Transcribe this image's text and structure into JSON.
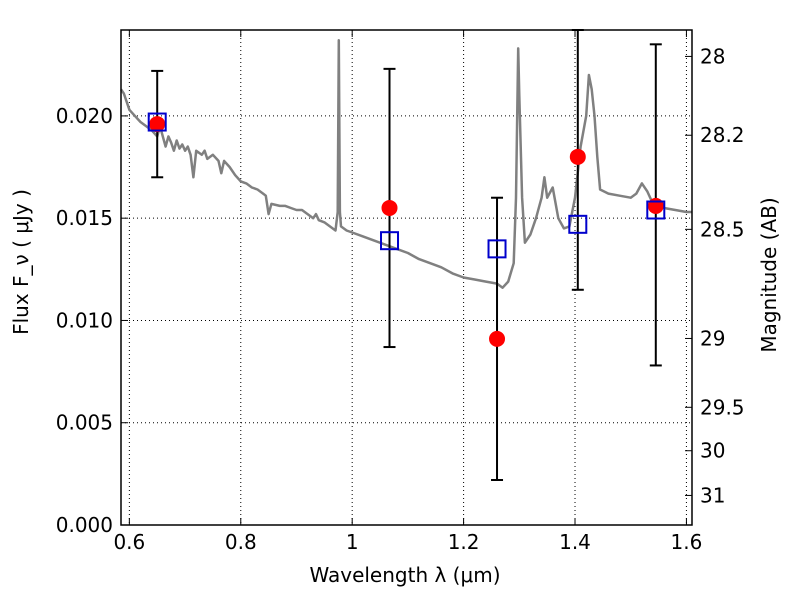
{
  "chart_data": {
    "type": "scatter",
    "xlabel": "Wavelength  λ (μm)",
    "ylabel": "Flux  F_ν  ( μJy )",
    "ylabel_right": "Magnitude (AB)",
    "xlim": [
      0.585,
      1.61
    ],
    "ylim": [
      0.0,
      0.0242
    ],
    "x_ticks": [
      0.6,
      0.8,
      1.0,
      1.2,
      1.4,
      1.6
    ],
    "x_tick_labels": [
      "0.6",
      "0.8",
      "1",
      "1.2",
      "1.4",
      "1.6"
    ],
    "y_ticks": [
      0.0,
      0.005,
      0.01,
      0.015,
      0.02
    ],
    "y_tick_labels": [
      "0.000",
      "0.005",
      "0.010",
      "0.015",
      "0.020"
    ],
    "right_ticks": [
      {
        "mag": 28.0,
        "label": "28"
      },
      {
        "mag": 28.2,
        "label": "28.2"
      },
      {
        "mag": 28.5,
        "label": "28.5"
      },
      {
        "mag": 29.0,
        "label": "29"
      },
      {
        "mag": 29.5,
        "label": "29.5"
      },
      {
        "mag": 30.0,
        "label": "30"
      },
      {
        "mag": 31.0,
        "label": "31"
      }
    ],
    "grid": true,
    "colors": {
      "spectrum": "#808080",
      "observed": "#ff0000",
      "model": "#0000cc",
      "errorbar": "#000000"
    },
    "series": [
      {
        "type": "line",
        "points": [
          [
            0.585,
            0.0213
          ],
          [
            0.59,
            0.0211
          ],
          [
            0.6,
            0.0203
          ],
          [
            0.61,
            0.02
          ],
          [
            0.62,
            0.0197
          ],
          [
            0.63,
            0.0195
          ],
          [
            0.64,
            0.0193
          ],
          [
            0.65,
            0.019
          ],
          [
            0.655,
            0.0195
          ],
          [
            0.66,
            0.019
          ],
          [
            0.665,
            0.0185
          ],
          [
            0.67,
            0.019
          ],
          [
            0.675,
            0.0187
          ],
          [
            0.68,
            0.0183
          ],
          [
            0.685,
            0.0188
          ],
          [
            0.69,
            0.0184
          ],
          [
            0.695,
            0.0186
          ],
          [
            0.7,
            0.0183
          ],
          [
            0.705,
            0.0185
          ],
          [
            0.71,
            0.0181
          ],
          [
            0.715,
            0.017
          ],
          [
            0.72,
            0.0183
          ],
          [
            0.73,
            0.0181
          ],
          [
            0.735,
            0.0183
          ],
          [
            0.74,
            0.0179
          ],
          [
            0.75,
            0.0181
          ],
          [
            0.76,
            0.0178
          ],
          [
            0.765,
            0.0172
          ],
          [
            0.77,
            0.0178
          ],
          [
            0.78,
            0.0175
          ],
          [
            0.79,
            0.0171
          ],
          [
            0.8,
            0.0168
          ],
          [
            0.81,
            0.0167
          ],
          [
            0.82,
            0.0165
          ],
          [
            0.83,
            0.0164
          ],
          [
            0.84,
            0.0162
          ],
          [
            0.845,
            0.0161
          ],
          [
            0.85,
            0.0152
          ],
          [
            0.855,
            0.0157
          ],
          [
            0.87,
            0.0156
          ],
          [
            0.88,
            0.0156
          ],
          [
            0.89,
            0.0155
          ],
          [
            0.9,
            0.0154
          ],
          [
            0.91,
            0.0154
          ],
          [
            0.92,
            0.0152
          ],
          [
            0.93,
            0.015
          ],
          [
            0.935,
            0.0152
          ],
          [
            0.94,
            0.0149
          ],
          [
            0.95,
            0.0148
          ],
          [
            0.96,
            0.0146
          ],
          [
            0.97,
            0.0144
          ],
          [
            0.974,
            0.0153
          ],
          [
            0.976,
            0.0237
          ],
          [
            0.978,
            0.0153
          ],
          [
            0.98,
            0.0146
          ],
          [
            0.99,
            0.0144
          ],
          [
            1.0,
            0.0143
          ],
          [
            1.02,
            0.0141
          ],
          [
            1.04,
            0.0139
          ],
          [
            1.06,
            0.0137
          ],
          [
            1.08,
            0.0135
          ],
          [
            1.1,
            0.0133
          ],
          [
            1.12,
            0.013
          ],
          [
            1.14,
            0.0128
          ],
          [
            1.16,
            0.0126
          ],
          [
            1.18,
            0.0123
          ],
          [
            1.2,
            0.0121
          ],
          [
            1.22,
            0.012
          ],
          [
            1.24,
            0.0119
          ],
          [
            1.26,
            0.0118
          ],
          [
            1.27,
            0.0116
          ],
          [
            1.28,
            0.0119
          ],
          [
            1.29,
            0.0128
          ],
          [
            1.294,
            0.016
          ],
          [
            1.298,
            0.0233
          ],
          [
            1.3,
            0.021
          ],
          [
            1.305,
            0.016
          ],
          [
            1.31,
            0.0138
          ],
          [
            1.32,
            0.0142
          ],
          [
            1.33,
            0.015
          ],
          [
            1.34,
            0.016
          ],
          [
            1.345,
            0.017
          ],
          [
            1.35,
            0.016
          ],
          [
            1.36,
            0.0165
          ],
          [
            1.37,
            0.015
          ],
          [
            1.38,
            0.0145
          ],
          [
            1.39,
            0.0146
          ],
          [
            1.4,
            0.016
          ],
          [
            1.41,
            0.0185
          ],
          [
            1.42,
            0.02
          ],
          [
            1.425,
            0.022
          ],
          [
            1.43,
            0.0213
          ],
          [
            1.435,
            0.02
          ],
          [
            1.44,
            0.018
          ],
          [
            1.445,
            0.0164
          ],
          [
            1.46,
            0.0162
          ],
          [
            1.48,
            0.0161
          ],
          [
            1.5,
            0.016
          ],
          [
            1.51,
            0.0162
          ],
          [
            1.52,
            0.0167
          ],
          [
            1.53,
            0.0163
          ],
          [
            1.54,
            0.0157
          ],
          [
            1.55,
            0.0156
          ],
          [
            1.56,
            0.0155
          ],
          [
            1.58,
            0.0154
          ],
          [
            1.6,
            0.0153
          ],
          [
            1.61,
            0.0153
          ]
        ]
      },
      {
        "type": "scatter",
        "marker": "circle",
        "x": [
          0.65,
          1.067,
          1.26,
          1.405,
          1.545
        ],
        "y": [
          0.0196,
          0.0155,
          0.0091,
          0.018,
          0.0156
        ],
        "yerr_low": [
          0.017,
          0.0087,
          0.0022,
          0.0115,
          0.0078
        ],
        "yerr_high": [
          0.0222,
          0.0223,
          0.016,
          0.0242,
          0.0235
        ]
      },
      {
        "type": "scatter",
        "marker": "square",
        "x": [
          0.65,
          1.067,
          1.26,
          1.405,
          1.545
        ],
        "y": [
          0.0197,
          0.0139,
          0.0135,
          0.0147,
          0.0154
        ]
      }
    ]
  }
}
